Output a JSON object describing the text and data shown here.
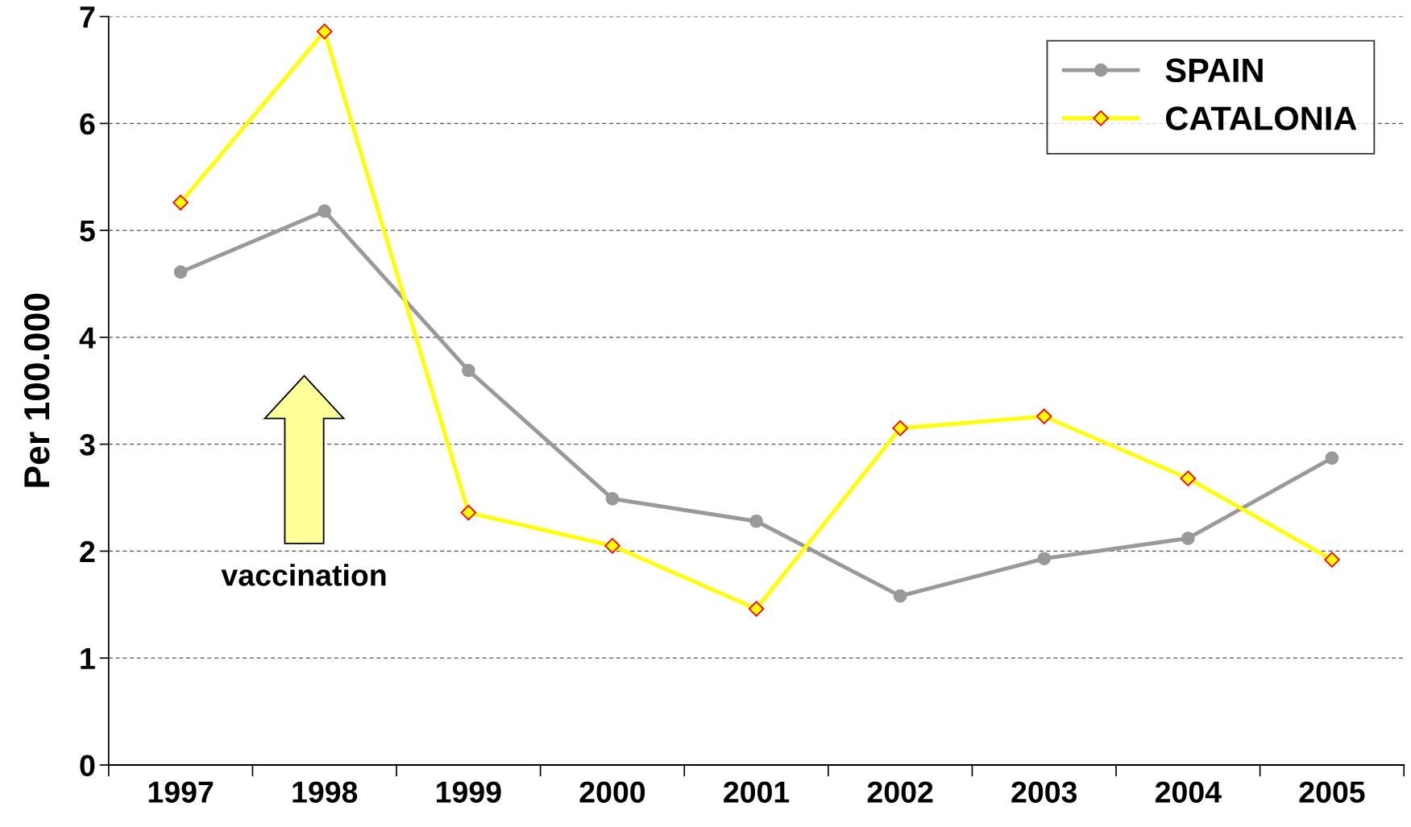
{
  "chart_data": {
    "type": "line",
    "ylabel": "Per 100.000",
    "categories": [
      "1997",
      "1998",
      "1999",
      "2000",
      "2001",
      "2002",
      "2003",
      "2004",
      "2005"
    ],
    "series": [
      {
        "name": "SPAIN",
        "color": "#999999",
        "marker": "circle",
        "values": [
          4.61,
          5.18,
          3.69,
          2.49,
          2.28,
          1.58,
          1.93,
          2.12,
          2.87
        ]
      },
      {
        "name": "CATALONIA",
        "color": "#ffff00",
        "marker": "diamond",
        "values": [
          5.26,
          6.86,
          2.36,
          2.05,
          1.46,
          3.15,
          3.26,
          2.68,
          1.92
        ]
      }
    ],
    "ylim": [
      0,
      7
    ],
    "yticks": [
      0,
      1,
      2,
      3,
      4,
      5,
      6,
      7
    ],
    "grid": "y",
    "legend": "top right",
    "line_style": "solid",
    "annotations": [
      "vaccination"
    ]
  }
}
